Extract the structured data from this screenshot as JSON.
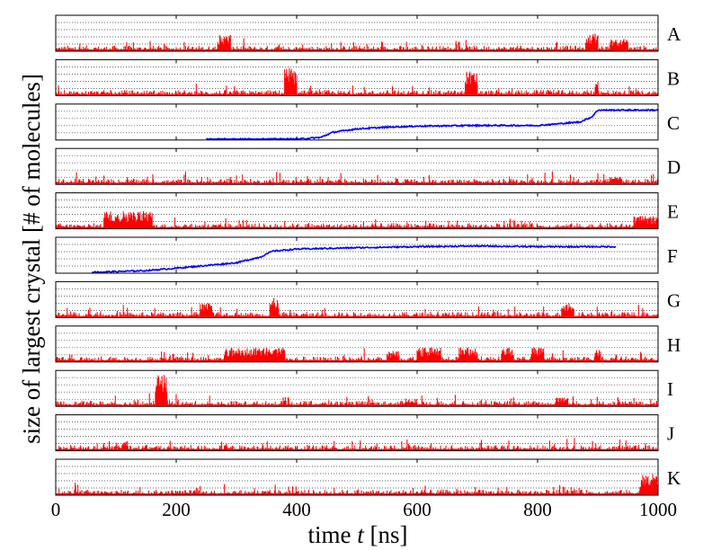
{
  "chart_data": {
    "type": "line",
    "title": "",
    "xlabel_prefix": "time",
    "xlabel_var": "t",
    "xlabel_suffix": "[ns]",
    "ylabel": "size of largest crystal [# of molecules]",
    "xlim": [
      0,
      1000
    ],
    "x_ticks": [
      0,
      200,
      400,
      600,
      800,
      1000
    ],
    "x_tick_labels": [
      "0",
      "200",
      "400",
      "600",
      "800",
      "1000"
    ],
    "grid": "horizontal dotted",
    "colors": {
      "non_nucleating": "#ff0000",
      "nucleating": "#0000ff"
    },
    "panels": [
      {
        "label": "A",
        "color": "#ff0000",
        "type": "noise",
        "bursts": [
          [
            270,
            290,
            0.45
          ],
          [
            880,
            900,
            0.5
          ],
          [
            920,
            950,
            0.35
          ]
        ]
      },
      {
        "label": "B",
        "color": "#ff0000",
        "type": "noise",
        "bursts": [
          [
            380,
            400,
            0.8
          ],
          [
            680,
            700,
            0.7
          ],
          [
            895,
            900,
            0.45
          ]
        ]
      },
      {
        "label": "C",
        "color": "#0000ff",
        "type": "growth",
        "points": [
          [
            250,
            0
          ],
          [
            400,
            0
          ],
          [
            440,
            0.05
          ],
          [
            460,
            0.2
          ],
          [
            500,
            0.3
          ],
          [
            550,
            0.35
          ],
          [
            600,
            0.38
          ],
          [
            700,
            0.4
          ],
          [
            800,
            0.4
          ],
          [
            870,
            0.5
          ],
          [
            890,
            0.65
          ],
          [
            900,
            0.85
          ],
          [
            1000,
            0.85
          ]
        ]
      },
      {
        "label": "D",
        "color": "#ff0000",
        "type": "noise",
        "bursts": [
          [
            920,
            940,
            0.2
          ]
        ]
      },
      {
        "label": "E",
        "color": "#ff0000",
        "type": "noise",
        "bursts": [
          [
            80,
            160,
            0.5
          ],
          [
            960,
            1000,
            0.35
          ]
        ]
      },
      {
        "label": "F",
        "color": "#0000ff",
        "type": "growth",
        "points": [
          [
            60,
            0
          ],
          [
            150,
            0.05
          ],
          [
            200,
            0.12
          ],
          [
            300,
            0.28
          ],
          [
            340,
            0.45
          ],
          [
            360,
            0.62
          ],
          [
            400,
            0.68
          ],
          [
            500,
            0.72
          ],
          [
            600,
            0.75
          ],
          [
            700,
            0.77
          ],
          [
            800,
            0.75
          ],
          [
            930,
            0.75
          ]
        ]
      },
      {
        "label": "G",
        "color": "#ff0000",
        "type": "noise",
        "bursts": [
          [
            240,
            260,
            0.4
          ],
          [
            355,
            370,
            0.55
          ],
          [
            840,
            860,
            0.45
          ]
        ]
      },
      {
        "label": "H",
        "color": "#ff0000",
        "type": "noise",
        "bursts": [
          [
            280,
            380,
            0.4
          ],
          [
            550,
            570,
            0.3
          ],
          [
            600,
            640,
            0.4
          ],
          [
            670,
            700,
            0.4
          ],
          [
            740,
            760,
            0.4
          ],
          [
            790,
            810,
            0.4
          ],
          [
            895,
            905,
            0.35
          ]
        ]
      },
      {
        "label": "I",
        "color": "#ff0000",
        "type": "noise",
        "bursts": [
          [
            165,
            185,
            0.9
          ],
          [
            580,
            600,
            0.2
          ],
          [
            830,
            850,
            0.25
          ]
        ]
      },
      {
        "label": "J",
        "color": "#ff0000",
        "type": "noise",
        "bursts": [
          [
            110,
            120,
            0.3
          ]
        ]
      },
      {
        "label": "K",
        "color": "#ff0000",
        "type": "noise",
        "bursts": [
          [
            970,
            1000,
            0.6
          ]
        ]
      }
    ]
  }
}
